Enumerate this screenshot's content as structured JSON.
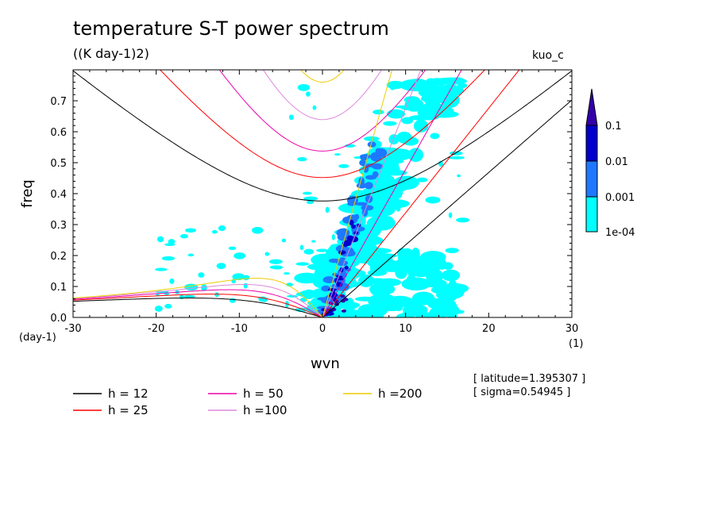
{
  "chart_data": {
    "type": "contour",
    "title": "temperature S-T power spectrum",
    "units": "((K day-1)2)",
    "model": "kuo_c",
    "xlabel": "wvn",
    "ylabel": "freq",
    "x_unit": "(1)",
    "y_unit": "(day-1)",
    "xlim": [
      -30,
      30
    ],
    "ylim": [
      0,
      0.8
    ],
    "x_ticks": [
      "-30",
      "-20",
      "-10",
      "0",
      "10",
      "20",
      "30"
    ],
    "y_ticks": [
      "0.0",
      "0.1",
      "0.2",
      "0.3",
      "0.4",
      "0.5",
      "0.6",
      "0.7"
    ],
    "colorbar": {
      "levels": [
        "1e-04",
        "0.001",
        "0.01",
        "0.1"
      ],
      "colors": [
        "#00ffff",
        "#1e78ff",
        "#0000cc",
        "#3300aa"
      ]
    },
    "info": [
      "[ latitude=1.395307 ]",
      "[ sigma=0.54945 ]"
    ],
    "series": [
      {
        "name": "h = 12",
        "h": 12,
        "color": "#000000"
      },
      {
        "name": "h = 25",
        "h": 25,
        "color": "#ff0000"
      },
      {
        "name": "h = 50",
        "h": 50,
        "color": "#ee00aa"
      },
      {
        "name": "h =100",
        "h": 100,
        "color": "#dd88dd"
      },
      {
        "name": "h =200",
        "h": 200,
        "color": "#eecc00"
      }
    ]
  }
}
